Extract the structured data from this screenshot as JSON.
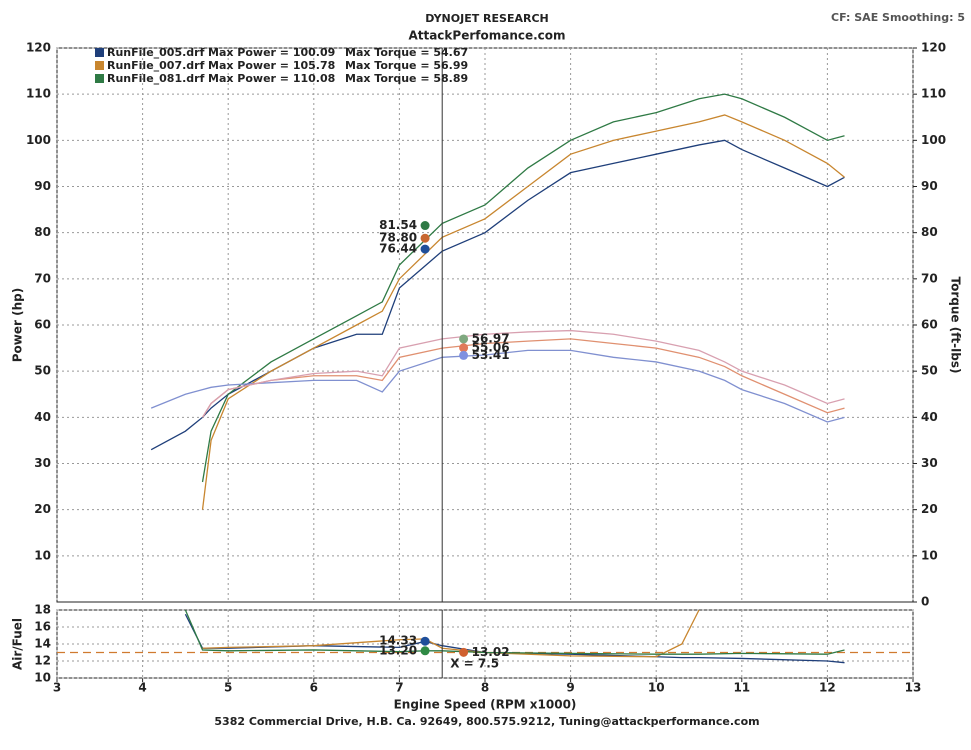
{
  "chart_data": [
    {
      "type": "line",
      "title": "DYNOJET RESEARCH",
      "subtitle": "AttackPerfomance.com",
      "note": "CF: SAE  Smoothing: 5",
      "footer": "5382 Commercial Drive, H.B. Ca. 92649, 800.575.9212, Tuning@attackperformance.com",
      "ylabel": "Power (hp)",
      "y2label": "Torque (ft-lbs)",
      "xlim": [
        3,
        13
      ],
      "ylim": [
        0,
        120
      ],
      "y2lim": [
        0,
        120
      ],
      "yticks": [
        10,
        20,
        30,
        40,
        50,
        60,
        70,
        80,
        90,
        100,
        110,
        120
      ],
      "y2ticks": [
        0,
        10,
        20,
        30,
        40,
        50,
        60,
        70,
        80,
        90,
        100,
        110,
        120
      ],
      "grid": true,
      "x": [
        4.1,
        4.5,
        4.7,
        4.8,
        5,
        5.5,
        6,
        6.5,
        6.8,
        7,
        7.5,
        8,
        8.5,
        9,
        9.5,
        10,
        10.5,
        10.8,
        11,
        11.5,
        12,
        12.2
      ],
      "series": [
        {
          "name": "RunFile_005.drf",
          "color": "#1f3f7a",
          "values": [
            33,
            37,
            40,
            42,
            45,
            50,
            55,
            58,
            58,
            68,
            76,
            80,
            87,
            93,
            95,
            97,
            99,
            100,
            98,
            94,
            90,
            92
          ]
        },
        {
          "name": "RunFile_007.drf",
          "color": "#c8862f",
          "values": [
            null,
            null,
            20,
            35,
            44,
            50,
            55,
            60,
            63,
            70,
            79,
            83,
            90,
            97,
            100,
            102,
            104,
            105.5,
            104,
            100,
            95,
            92
          ]
        },
        {
          "name": "RunFile_081.drf",
          "color": "#2f7a45",
          "values": [
            null,
            null,
            26,
            37,
            45,
            52,
            57,
            62,
            65,
            73,
            82,
            86,
            94,
            100,
            104,
            106,
            109,
            110,
            109,
            105,
            100,
            101
          ]
        },
        {
          "axis": "y2",
          "color": "#8090d0",
          "values": [
            42,
            45,
            46,
            46.5,
            47,
            47.5,
            48,
            48,
            45.5,
            50,
            53,
            53.5,
            54.5,
            54.5,
            53,
            52,
            50,
            48,
            46,
            43,
            39,
            40
          ]
        },
        {
          "axis": "y2",
          "color": "#e09070",
          "values": [
            null,
            null,
            40,
            43,
            46,
            48,
            49,
            49,
            48,
            53,
            55,
            56,
            56.5,
            57,
            56,
            55,
            53,
            51,
            49,
            45,
            41,
            42
          ]
        },
        {
          "axis": "y2",
          "color": "#d8a0b0",
          "values": [
            null,
            null,
            40,
            43,
            46,
            48,
            49.5,
            50,
            49,
            55,
            57,
            58,
            58.5,
            58.8,
            58,
            56.5,
            54.5,
            52,
            50,
            47,
            43,
            44
          ]
        }
      ],
      "legend_power": [
        "Max Power = 100.09",
        "Max Power = 105.78",
        "Max Power = 110.08"
      ],
      "legend_torque": [
        "Max Torque = 54.67",
        "Max Torque = 56.99",
        "Max Torque = 58.89"
      ],
      "markers": [
        {
          "x": 7.3,
          "values": [
            81.54,
            78.8,
            76.44
          ],
          "value_labels": [
            "81.54",
            "78.80",
            "76.44"
          ],
          "colors": [
            "#2f7a45",
            "#c8662f",
            "#1f4f9a"
          ]
        },
        {
          "x": 7.75,
          "axis": "y2",
          "values": [
            56.97,
            55.06,
            53.41
          ],
          "value_labels": [
            "56.97",
            "55.06",
            "53.41"
          ],
          "colors": [
            "#7fa87f",
            "#e07a5a",
            "#7f90e0"
          ]
        }
      ]
    },
    {
      "type": "line",
      "ylabel": "Air/Fuel",
      "xlabel": "Engine Speed (RPM x1000)",
      "xlim": [
        3,
        13
      ],
      "ylim": [
        10,
        18
      ],
      "yticks": [
        10,
        12,
        14,
        16,
        18
      ],
      "xticks": [
        3,
        4,
        5,
        6,
        7,
        8,
        9,
        10,
        11,
        12,
        13
      ],
      "grid": true,
      "target": 13,
      "cursor": {
        "value": 7.5,
        "label": "X = 7.5"
      },
      "x": [
        4.5,
        4.7,
        5,
        6,
        7,
        7.3,
        7.5,
        8,
        9,
        10,
        10.3,
        10.5,
        11,
        12,
        12.2
      ],
      "series": [
        {
          "color": "#1f3f7a",
          "values": [
            17.5,
            13.5,
            13.5,
            13.8,
            13.6,
            14.3,
            13.8,
            13,
            12.8,
            12.5,
            12.4,
            12.4,
            12.3,
            12,
            11.8
          ]
        },
        {
          "color": "#c8862f",
          "values": [
            null,
            13.5,
            13.6,
            13.8,
            14.5,
            14.6,
            13.5,
            13,
            12.6,
            12.5,
            14,
            18,
            null,
            null,
            null
          ]
        },
        {
          "color": "#2f7a45",
          "values": [
            18,
            13.3,
            13.2,
            13.3,
            13.1,
            13.2,
            13.2,
            13,
            12.9,
            12.8,
            12.8,
            12.8,
            12.9,
            12.8,
            13.3
          ]
        }
      ],
      "markers": [
        {
          "x": 7.3,
          "values": [
            14.33,
            13.2
          ],
          "value_labels": [
            "14.33",
            "13.20"
          ],
          "colors": [
            "#1f4f9a",
            "#2f8a45"
          ]
        },
        {
          "x": 7.75,
          "values": [
            13.02
          ],
          "value_labels": [
            "13.02"
          ],
          "colors": [
            "#d0602f"
          ]
        }
      ]
    }
  ]
}
